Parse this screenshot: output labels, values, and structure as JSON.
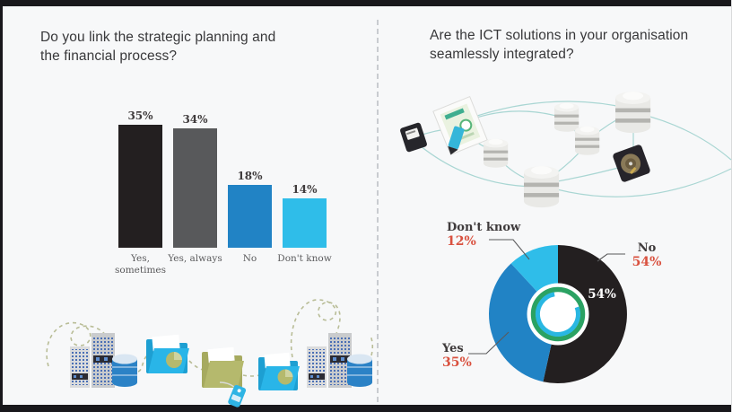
{
  "page": {
    "background": "#f7f8f9",
    "border_color": "#19181c",
    "divider_color": "#c9ccd0"
  },
  "left_panel": {
    "title": "Do you link the strategic planning and the financial process?"
  },
  "right_panel": {
    "title": "Are the ICT solutions in your organisation seamlessly integrated?"
  },
  "colors": {
    "bar_black": "#231f20",
    "bar_gray": "#58595b",
    "bar_blue": "#2183c5",
    "bar_cyan": "#2fbde9",
    "percent_red": "#d9513f",
    "label_dark": "#3f3b3c",
    "ring_green": "#2ba263",
    "ring_cyan": "#29b7e2",
    "network_line_teal": "#a9d6d3",
    "dashed_olive": "#b9bd97",
    "folder_cyan": "#29b5e8",
    "folder_olive": "#b5b96d"
  },
  "icons": {
    "left_bottom_illustration": [
      "server-rack-icon",
      "database-icon",
      "folder-pie-icon",
      "folder-icon",
      "tag-icon",
      "dashed-loop-path"
    ],
    "right_network_illustration": [
      "card-reader-icon",
      "document-pen-icon",
      "database-icon",
      "hard-disk-icon",
      "network-curve-lines"
    ]
  },
  "chart_data": [
    {
      "type": "bar",
      "title": "Do you link the strategic planning and the financial process?",
      "categories": [
        "Yes, sometimes",
        "Yes, always",
        "No",
        "Don't know"
      ],
      "values": [
        35,
        34,
        18,
        14
      ],
      "value_suffix": "%",
      "bar_colors": [
        "#231f20",
        "#58595b",
        "#2183c5",
        "#2fbde9"
      ],
      "ylim": [
        0,
        40
      ],
      "grid": false,
      "value_labels": [
        "35%",
        "34%",
        "18%",
        "14%"
      ]
    },
    {
      "type": "pie",
      "subtype": "donut",
      "title": "Are the ICT solutions in your organisation seamlessly integrated?",
      "slices": [
        {
          "label": "No",
          "value": 54,
          "percent_label": "54%",
          "color": "#231f20"
        },
        {
          "label": "Yes",
          "value": 35,
          "percent_label": "35%",
          "color": "#2183c5"
        },
        {
          "label": "Don't know",
          "value": 12,
          "percent_label": "12%",
          "color": "#2fbde9"
        }
      ],
      "start_angle_deg": 0,
      "direction": "clockwise",
      "inside_label": "54%",
      "legend_position": "callout-labels"
    }
  ]
}
